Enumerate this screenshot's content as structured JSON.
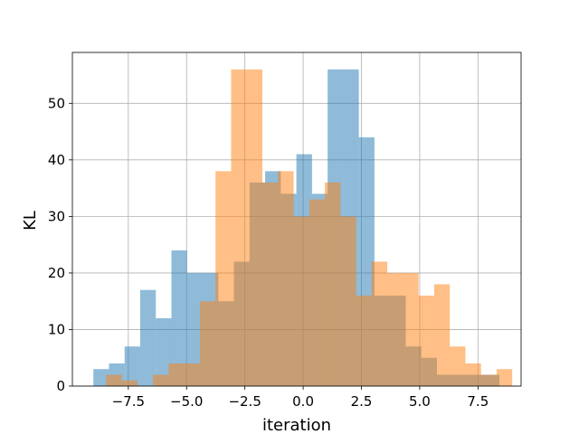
{
  "chart_data": {
    "type": "bar",
    "histogram": true,
    "title": "",
    "xlabel": "iteration",
    "ylabel": "KL",
    "xlim": [
      -9.9,
      9.35
    ],
    "ylim": [
      0,
      59
    ],
    "xticks": [
      -7.5,
      -5.0,
      -2.5,
      0.0,
      2.5,
      5.0,
      7.5
    ],
    "xtick_labels": [
      "−7.5",
      "−5.0",
      "−2.5",
      "0.0",
      "2.5",
      "5.0",
      "7.5"
    ],
    "yticks": [
      0,
      10,
      20,
      30,
      40,
      50
    ],
    "ytick_labels": [
      "0",
      "10",
      "20",
      "30",
      "40",
      "50"
    ],
    "grid": true,
    "legend": "none",
    "series": [
      {
        "color": "#1f77b4",
        "opacity": 0.5,
        "bin_edges": [
          -9.0,
          -8.33,
          -7.66,
          -6.99,
          -6.32,
          -5.65,
          -4.98,
          -4.31,
          -3.64,
          -2.97,
          -2.3,
          -1.63,
          -0.96,
          -0.29,
          0.38,
          1.05,
          1.72,
          2.39,
          3.06,
          3.73,
          4.4,
          5.07,
          5.74,
          6.41,
          7.08,
          7.75,
          8.42
        ],
        "values": [
          3,
          4,
          7,
          17,
          12,
          24,
          20,
          20,
          15,
          22,
          36,
          38,
          34,
          41,
          34,
          56,
          56,
          44,
          16,
          16,
          7,
          5,
          2,
          2,
          2,
          2
        ]
      },
      {
        "color": "#ff7f0e",
        "opacity": 0.5,
        "bin_edges": [
          -8.45,
          -7.78,
          -7.11,
          -6.44,
          -5.77,
          -5.1,
          -4.43,
          -3.76,
          -3.09,
          -2.42,
          -1.75,
          -1.08,
          -0.41,
          0.26,
          0.93,
          1.6,
          2.27,
          2.94,
          3.61,
          4.28,
          4.95,
          5.62,
          6.29,
          6.96,
          7.63,
          8.3,
          8.97
        ],
        "values": [
          2,
          1,
          0,
          2,
          4,
          4,
          15,
          38,
          56,
          56,
          36,
          38,
          30,
          33,
          36,
          30,
          16,
          22,
          20,
          20,
          16,
          18,
          7,
          4,
          2,
          3
        ]
      }
    ]
  }
}
